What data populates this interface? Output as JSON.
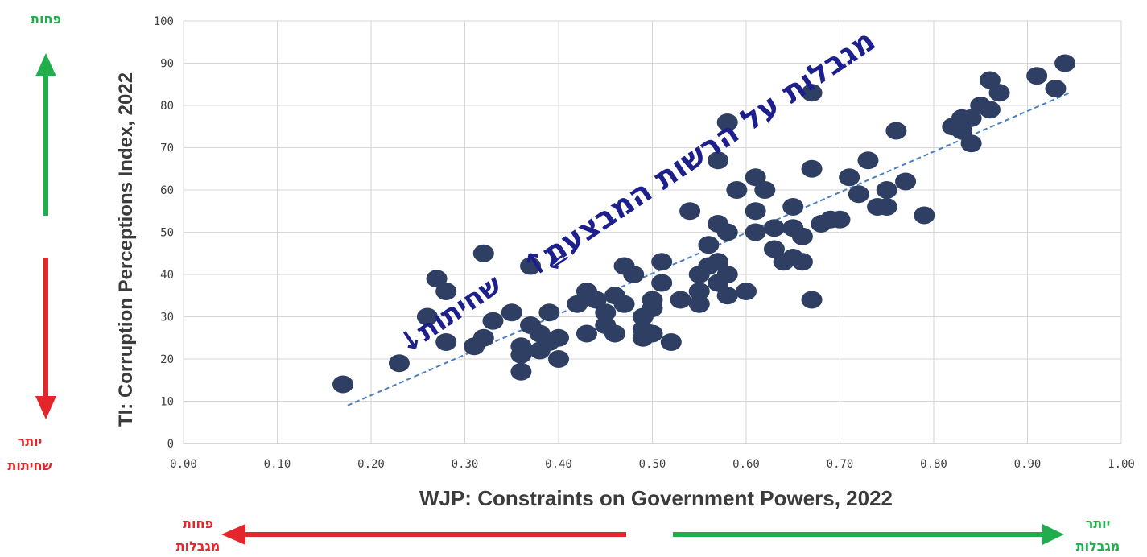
{
  "chart_data": {
    "type": "scatter",
    "xlabel": "WJP: Constraints on Government Powers, 2022",
    "ylabel": "TI: Corruption Perceptions Index, 2022",
    "xlim": [
      0,
      1
    ],
    "ylim": [
      0,
      100
    ],
    "x_ticks": [
      "0.00",
      "0.10",
      "0.20",
      "0.30",
      "0.40",
      "0.50",
      "0.60",
      "0.70",
      "0.80",
      "0.90",
      "1.00"
    ],
    "y_ticks": [
      "0",
      "10",
      "20",
      "30",
      "40",
      "50",
      "60",
      "70",
      "80",
      "90",
      "100"
    ],
    "grid": true,
    "marker_color": "#2e3f63",
    "trendline": {
      "color": "#4a7fc0",
      "x": [
        0.175,
        0.945
      ],
      "y": [
        9,
        83
      ]
    },
    "points": [
      [
        0.17,
        14
      ],
      [
        0.23,
        19
      ],
      [
        0.26,
        30
      ],
      [
        0.27,
        39
      ],
      [
        0.28,
        36
      ],
      [
        0.28,
        24
      ],
      [
        0.31,
        23
      ],
      [
        0.32,
        25
      ],
      [
        0.33,
        29
      ],
      [
        0.32,
        45
      ],
      [
        0.35,
        31
      ],
      [
        0.36,
        23
      ],
      [
        0.36,
        21
      ],
      [
        0.36,
        17
      ],
      [
        0.37,
        42
      ],
      [
        0.37,
        28
      ],
      [
        0.38,
        26
      ],
      [
        0.38,
        22
      ],
      [
        0.39,
        31
      ],
      [
        0.39,
        24
      ],
      [
        0.4,
        20
      ],
      [
        0.4,
        25
      ],
      [
        0.42,
        33
      ],
      [
        0.43,
        36
      ],
      [
        0.43,
        26
      ],
      [
        0.44,
        34
      ],
      [
        0.45,
        31
      ],
      [
        0.45,
        28
      ],
      [
        0.46,
        26
      ],
      [
        0.46,
        35
      ],
      [
        0.47,
        42
      ],
      [
        0.47,
        33
      ],
      [
        0.48,
        40
      ],
      [
        0.49,
        30
      ],
      [
        0.49,
        25
      ],
      [
        0.49,
        27
      ],
      [
        0.5,
        34
      ],
      [
        0.5,
        26
      ],
      [
        0.5,
        32
      ],
      [
        0.51,
        38
      ],
      [
        0.51,
        43
      ],
      [
        0.52,
        24
      ],
      [
        0.53,
        34
      ],
      [
        0.54,
        55
      ],
      [
        0.55,
        40
      ],
      [
        0.55,
        36
      ],
      [
        0.55,
        33
      ],
      [
        0.56,
        47
      ],
      [
        0.56,
        42
      ],
      [
        0.57,
        38
      ],
      [
        0.57,
        43
      ],
      [
        0.57,
        52
      ],
      [
        0.58,
        40
      ],
      [
        0.58,
        35
      ],
      [
        0.58,
        50
      ],
      [
        0.57,
        67
      ],
      [
        0.58,
        76
      ],
      [
        0.59,
        60
      ],
      [
        0.6,
        36
      ],
      [
        0.61,
        55
      ],
      [
        0.61,
        50
      ],
      [
        0.61,
        63
      ],
      [
        0.62,
        60
      ],
      [
        0.63,
        51
      ],
      [
        0.63,
        46
      ],
      [
        0.64,
        43
      ],
      [
        0.65,
        56
      ],
      [
        0.65,
        44
      ],
      [
        0.65,
        51
      ],
      [
        0.66,
        49
      ],
      [
        0.66,
        43
      ],
      [
        0.67,
        65
      ],
      [
        0.67,
        34
      ],
      [
        0.68,
        52
      ],
      [
        0.69,
        53
      ],
      [
        0.7,
        53
      ],
      [
        0.67,
        83
      ],
      [
        0.71,
        63
      ],
      [
        0.72,
        59
      ],
      [
        0.73,
        67
      ],
      [
        0.74,
        56
      ],
      [
        0.75,
        60
      ],
      [
        0.75,
        56
      ],
      [
        0.76,
        74
      ],
      [
        0.77,
        62
      ],
      [
        0.79,
        54
      ],
      [
        0.82,
        75
      ],
      [
        0.83,
        74
      ],
      [
        0.83,
        77
      ],
      [
        0.84,
        71
      ],
      [
        0.84,
        77
      ],
      [
        0.85,
        80
      ],
      [
        0.86,
        86
      ],
      [
        0.86,
        79
      ],
      [
        0.87,
        83
      ],
      [
        0.91,
        87
      ],
      [
        0.93,
        84
      ],
      [
        0.94,
        90
      ]
    ]
  },
  "annotations": {
    "top_left": "פחות",
    "bottom_left_line1": "יותר",
    "bottom_left_line2": "שחיתות",
    "bottom_x_left_line1": "פחות",
    "bottom_x_left_line2": "מגבלות",
    "bottom_x_right_line1": "יותר",
    "bottom_x_right_line2": "מגבלות",
    "diagonal_main": "מגבלות על הרשות המבצעת↑",
    "diagonal_arrow": "⇐",
    "diagonal_small": "שחיתות↓"
  },
  "colors": {
    "green": "#1fae4b",
    "red": "#e3262b",
    "navy_text": "#1c1f8c",
    "grid": "#d6d6d6",
    "axis_text": "#404040"
  }
}
